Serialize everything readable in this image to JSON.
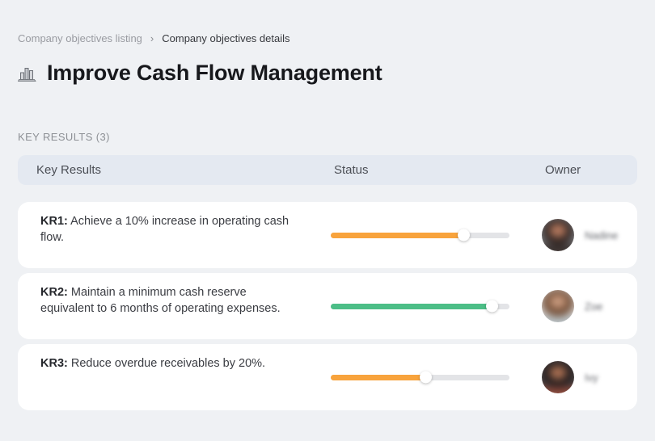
{
  "breadcrumb": {
    "items": [
      {
        "label": "Company objectives listing"
      },
      {
        "label": "Company objectives details"
      }
    ],
    "separator": "›"
  },
  "header": {
    "icon": "bar-chart-icon",
    "title": "Improve Cash Flow Management"
  },
  "section": {
    "label": "KEY RESULTS (3)"
  },
  "table": {
    "columns": [
      "Key Results",
      "Status",
      "Owner"
    ],
    "rows": [
      {
        "kr_label": "KR1:",
        "kr_text": "Achieve a 10% increase in operating cash flow.",
        "progress_percent": 74,
        "progress_color": "#f8a33c",
        "owner_name": "Nadine",
        "avatar": {
          "bg": "#7d7f82",
          "hair": "#2e2321",
          "skin": "#b5795e",
          "shoulders": "#3c3331"
        }
      },
      {
        "kr_label": "KR2:",
        "kr_text": "Maintain a minimum cash reserve equivalent to 6 months of operating expenses.",
        "progress_percent": 90,
        "progress_color": "#4cbe87",
        "owner_name": "Zoe",
        "avatar": {
          "bg": "#d8d3cf",
          "hair": "#6e4a33",
          "skin": "#c89a7e",
          "shoulders": "#b9c2c6"
        }
      },
      {
        "kr_label": "KR3:",
        "kr_text": "Reduce overdue receivables by 20%.",
        "progress_percent": 53,
        "progress_color": "#f8a33c",
        "owner_name": "Ivy",
        "avatar": {
          "bg": "#4a4344",
          "hair": "#201a1b",
          "skin": "#a96f52",
          "shoulders": "#8e4a3c"
        }
      }
    ]
  },
  "colors": {
    "page_bg": "#eff1f4",
    "header_row_bg": "#e4e9f1",
    "track": "#e3e4e7",
    "orange": "#f8a33c",
    "green": "#4cbe87"
  }
}
